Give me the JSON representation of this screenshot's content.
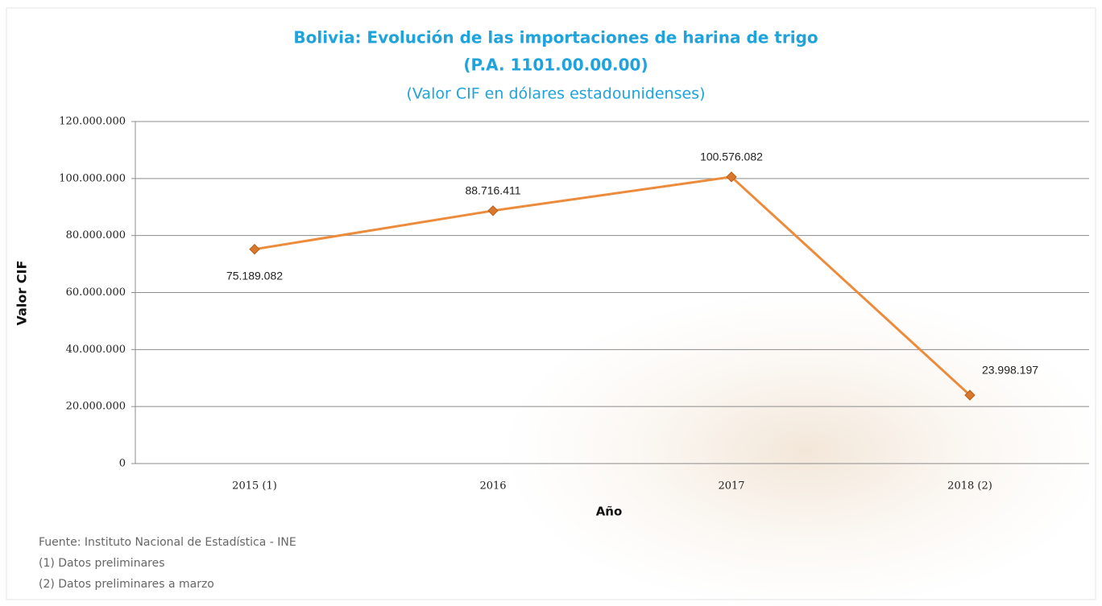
{
  "chart_data": {
    "type": "line",
    "title": "Bolivia: Evolución de las importaciones de harina de trigo",
    "title_code": "(P.A. 1101.00.00.00)",
    "subtitle": "(Valor CIF en dólares estadounidenses)",
    "x_label": "Año",
    "y_label": "Valor CIF",
    "categories": [
      "2015 (1)",
      "2016",
      "2017",
      "2018 (2)"
    ],
    "series": [
      {
        "color": "#ec8b3c",
        "values": [
          75189082,
          88716411,
          100576082,
          23998197
        ],
        "value_labels": [
          "75.189.082",
          "88.716.411",
          "100.576.082",
          "23.998.197"
        ]
      }
    ],
    "ylim": [
      0,
      120000000
    ],
    "yticks": [
      0,
      {
        "value": 20000000,
        "label": "20.000.000"
      },
      {
        "value": 40000000,
        "label": "40.000.000"
      },
      {
        "value": 60000000,
        "label": "60.000.000"
      },
      {
        "value": 80000000,
        "label": "80.000.000"
      },
      {
        "value": 100000000,
        "label": "100.000.000"
      },
      {
        "value": 120000000,
        "label": "120.000.000"
      }
    ],
    "grid": true,
    "footnotes": [
      "Fuente: Instituto Nacional de Estadística - INE",
      "(1) Datos preliminares",
      "(2) Datos preliminares a marzo"
    ]
  }
}
